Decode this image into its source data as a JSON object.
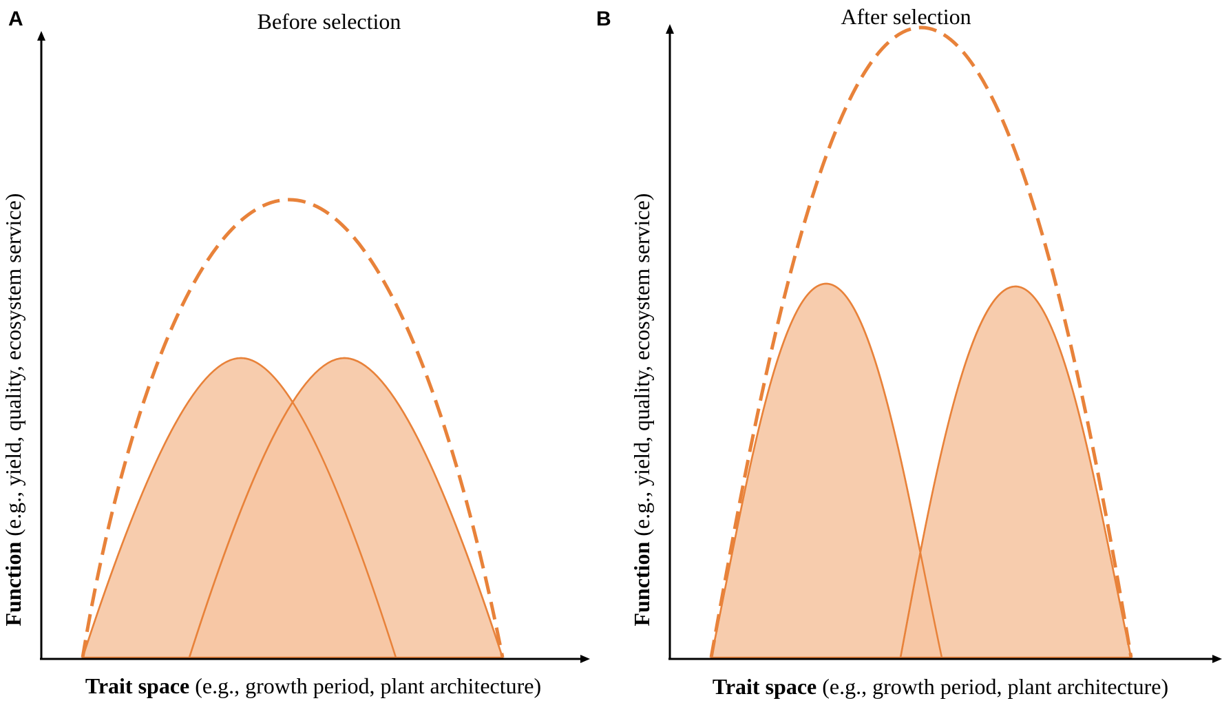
{
  "panels": [
    {
      "letter": "A",
      "title": "Before selection",
      "ylabel_bold": "Function",
      "ylabel_rest": " (e.g., yield, quality, ecosystem service)",
      "xlabel_bold": "Trait space",
      "xlabel_rest": " (e.g., growth period, plant architecture)"
    },
    {
      "letter": "B",
      "title": "After selection",
      "ylabel_bold": "Function",
      "ylabel_rest": " (e.g., yield, quality, ecosystem service)",
      "xlabel_bold": "Trait space",
      "xlabel_rest": " (e.g., growth period, plant architecture)"
    }
  ],
  "colors": {
    "curve": "#e8823a",
    "fill": "#f6c6a4",
    "axis": "#000000"
  }
}
